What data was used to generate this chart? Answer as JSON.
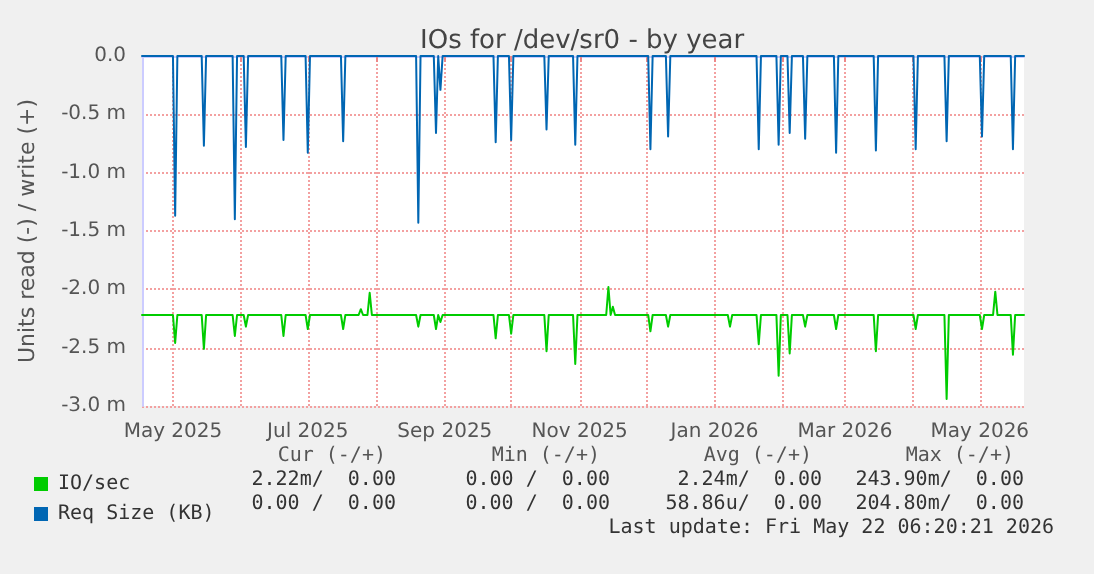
{
  "chart_data": {
    "type": "line",
    "title": "IOs for /dev/sr0 - by year",
    "ylabel": "Units read (-) / write (+)",
    "xlim": [
      "2025-04-17",
      "2026-05-21"
    ],
    "xticks": [
      {
        "value": "2025-05-01",
        "label": "May 2025"
      },
      {
        "value": "2025-06-01",
        "label": null
      },
      {
        "value": "2025-07-01",
        "label": "Jul 2025"
      },
      {
        "value": "2025-08-01",
        "label": null
      },
      {
        "value": "2025-09-01",
        "label": "Sep 2025"
      },
      {
        "value": "2025-10-01",
        "label": null
      },
      {
        "value": "2025-11-01",
        "label": "Nov 2025"
      },
      {
        "value": "2025-12-01",
        "label": null
      },
      {
        "value": "2026-01-01",
        "label": "Jan 2026"
      },
      {
        "value": "2026-02-01",
        "label": null
      },
      {
        "value": "2026-03-01",
        "label": "Mar 2026"
      },
      {
        "value": "2026-04-01",
        "label": null
      },
      {
        "value": "2026-05-01",
        "label": "May 2026"
      }
    ],
    "ylim": [
      -3.0,
      0
    ],
    "yticks": [
      {
        "value": -3.0,
        "label": "-3.0 m"
      },
      {
        "value": -2.5,
        "label": "-2.5 m"
      },
      {
        "value": -2.0,
        "label": "-2.0 m"
      },
      {
        "value": -1.5,
        "label": "-1.5 m"
      },
      {
        "value": -1.0,
        "label": "-1.0 m"
      },
      {
        "value": -0.5,
        "label": "-0.5 m"
      },
      {
        "value": 0,
        "label": "0.0"
      }
    ],
    "grid": true,
    "legend": "bottom left",
    "marker": "none",
    "line_style": "solid",
    "series": [
      {
        "name": "IO/sec",
        "color": "#00cc00",
        "x": [
          "2025-04-17",
          "2025-05-01",
          "2025-05-02",
          "2025-05-03",
          "2025-05-14",
          "2025-05-15",
          "2025-05-16",
          "2025-05-28",
          "2025-05-29",
          "2025-05-30",
          "2025-06-02",
          "2025-06-03",
          "2025-06-04",
          "2025-06-19",
          "2025-06-20",
          "2025-06-21",
          "2025-06-30",
          "2025-07-01",
          "2025-07-02",
          "2025-07-16",
          "2025-07-17",
          "2025-07-18",
          "2025-07-24",
          "2025-07-25",
          "2025-07-26",
          "2025-07-28",
          "2025-07-29",
          "2025-07-30",
          "2025-08-19",
          "2025-08-20",
          "2025-08-21",
          "2025-08-27",
          "2025-08-28",
          "2025-08-29",
          "2025-08-30",
          "2025-08-31",
          "2025-09-23",
          "2025-09-24",
          "2025-09-25",
          "2025-09-30",
          "2025-10-01",
          "2025-10-02",
          "2025-10-16",
          "2025-10-17",
          "2025-10-18",
          "2025-10-29",
          "2025-10-30",
          "2025-10-31",
          "2025-11-13",
          "2025-11-14",
          "2025-11-15",
          "2025-11-16",
          "2025-11-17",
          "2025-12-02",
          "2025-12-03",
          "2025-12-04",
          "2025-12-10",
          "2025-12-11",
          "2025-12-12",
          "2026-01-07",
          "2026-01-08",
          "2026-01-09",
          "2026-01-20",
          "2026-01-21",
          "2026-01-22",
          "2026-01-29",
          "2026-01-30",
          "2026-01-31",
          "2026-02-03",
          "2026-02-04",
          "2026-02-05",
          "2026-02-10",
          "2026-02-11",
          "2026-02-12",
          "2026-02-24",
          "2026-02-25",
          "2026-02-26",
          "2026-03-14",
          "2026-03-15",
          "2026-03-16",
          "2026-04-01",
          "2026-04-02",
          "2026-04-03",
          "2026-04-15",
          "2026-04-16",
          "2026-04-17",
          "2026-05-01",
          "2026-05-02",
          "2026-05-03",
          "2026-05-07",
          "2026-05-08",
          "2026-05-09",
          "2026-05-15",
          "2026-05-16",
          "2026-05-17",
          "2026-05-21"
        ],
        "values": [
          -2.22,
          -2.22,
          -2.46,
          -2.22,
          -2.22,
          -2.51,
          -2.22,
          -2.22,
          -2.4,
          -2.22,
          -2.22,
          -2.32,
          -2.22,
          -2.22,
          -2.4,
          -2.22,
          -2.22,
          -2.34,
          -2.22,
          -2.22,
          -2.34,
          -2.22,
          -2.22,
          -2.17,
          -2.22,
          -2.22,
          -2.03,
          -2.22,
          -2.22,
          -2.32,
          -2.22,
          -2.22,
          -2.34,
          -2.22,
          -2.28,
          -2.22,
          -2.22,
          -2.42,
          -2.22,
          -2.22,
          -2.38,
          -2.22,
          -2.22,
          -2.53,
          -2.22,
          -2.22,
          -2.64,
          -2.22,
          -2.22,
          -1.98,
          -2.22,
          -2.15,
          -2.22,
          -2.22,
          -2.36,
          -2.22,
          -2.22,
          -2.32,
          -2.22,
          -2.22,
          -2.32,
          -2.22,
          -2.22,
          -2.47,
          -2.22,
          -2.22,
          -2.74,
          -2.22,
          -2.22,
          -2.55,
          -2.22,
          -2.22,
          -2.32,
          -2.22,
          -2.22,
          -2.34,
          -2.22,
          -2.22,
          -2.53,
          -2.22,
          -2.22,
          -2.34,
          -2.22,
          -2.22,
          -2.94,
          -2.22,
          -2.22,
          -2.34,
          -2.22,
          -2.22,
          -2.02,
          -2.22,
          -2.22,
          -2.56,
          -2.22,
          -2.22
        ]
      },
      {
        "name": "Req Size (KB)",
        "color": "#0066b3",
        "x": [
          "2025-04-17",
          "2025-05-01",
          "2025-05-02",
          "2025-05-03",
          "2025-05-14",
          "2025-05-15",
          "2025-05-16",
          "2025-05-28",
          "2025-05-29",
          "2025-05-30",
          "2025-06-02",
          "2025-06-03",
          "2025-06-04",
          "2025-06-19",
          "2025-06-20",
          "2025-06-21",
          "2025-06-30",
          "2025-07-01",
          "2025-07-02",
          "2025-07-16",
          "2025-07-17",
          "2025-07-18",
          "2025-08-19",
          "2025-08-20",
          "2025-08-21",
          "2025-08-27",
          "2025-08-28",
          "2025-08-29",
          "2025-08-30",
          "2025-08-31",
          "2025-09-23",
          "2025-09-24",
          "2025-09-25",
          "2025-09-30",
          "2025-10-01",
          "2025-10-02",
          "2025-10-16",
          "2025-10-17",
          "2025-10-18",
          "2025-10-29",
          "2025-10-30",
          "2025-10-31",
          "2025-12-02",
          "2025-12-03",
          "2025-12-04",
          "2025-12-10",
          "2025-12-11",
          "2025-12-12",
          "2026-01-20",
          "2026-01-21",
          "2026-01-22",
          "2026-01-29",
          "2026-01-30",
          "2026-01-31",
          "2026-02-03",
          "2026-02-04",
          "2026-02-05",
          "2026-02-10",
          "2026-02-11",
          "2026-02-12",
          "2026-02-24",
          "2026-02-25",
          "2026-02-26",
          "2026-03-14",
          "2026-03-15",
          "2026-03-16",
          "2026-04-01",
          "2026-04-02",
          "2026-04-03",
          "2026-04-15",
          "2026-04-16",
          "2026-04-17",
          "2026-05-01",
          "2026-05-02",
          "2026-05-03",
          "2026-05-15",
          "2026-05-16",
          "2026-05-17",
          "2026-05-21"
        ],
        "values": [
          0,
          0,
          -1.37,
          0,
          0,
          -0.77,
          0,
          0,
          -1.4,
          0,
          0,
          -0.78,
          0,
          0,
          -0.72,
          0,
          0,
          -0.83,
          0,
          0,
          -0.73,
          0,
          0,
          -1.43,
          0,
          0,
          -0.66,
          0,
          -0.29,
          0,
          0,
          -0.74,
          0,
          0,
          -0.72,
          0,
          0,
          -0.63,
          0,
          0,
          -0.76,
          0,
          0,
          -0.8,
          0,
          0,
          -0.69,
          0,
          0,
          -0.8,
          0,
          0,
          -0.76,
          0,
          0,
          -0.66,
          0,
          0,
          -0.71,
          0,
          0,
          -0.83,
          0,
          0,
          -0.81,
          0,
          0,
          -0.8,
          0,
          0,
          -0.73,
          0,
          0,
          -0.69,
          0,
          0,
          -0.8,
          0,
          0
        ]
      }
    ],
    "annotations": [
      "Cur (-/+)",
      "Min (-/+)",
      "Avg (-/+)",
      "Max (-/+)",
      "2.22m/  0.00",
      "0.00 /  0.00",
      "2.24m/  0.00",
      "243.90m/  0.00",
      "0.00 /  0.00",
      "0.00 /  0.00",
      "58.86u/  0.00",
      "204.80m/  0.00",
      "Last update: Fri May 22 06:20:21 2026"
    ]
  }
}
